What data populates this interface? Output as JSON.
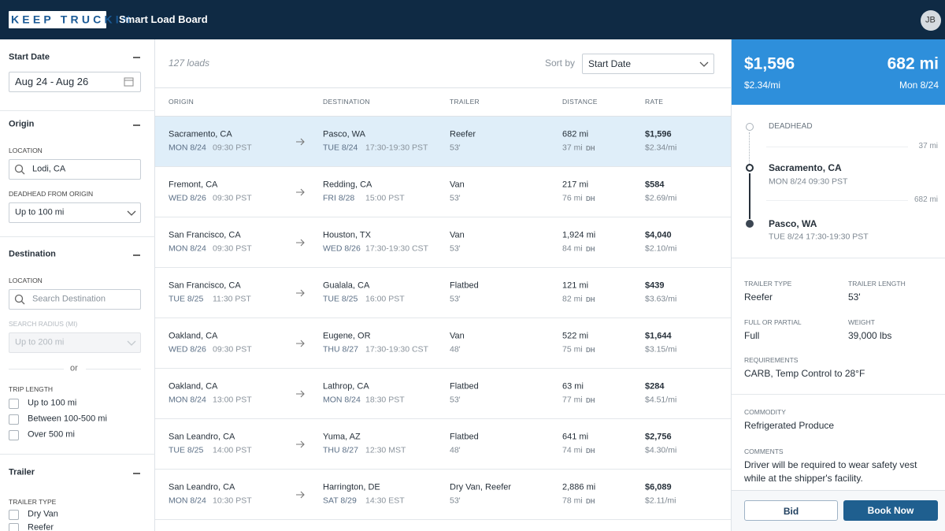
{
  "header": {
    "logo": "KEEP TRUCKIN",
    "title": "Smart Load Board",
    "avatar": "JB"
  },
  "filters": {
    "start_date": {
      "label": "Start Date",
      "value": "Aug 24 - Aug 26"
    },
    "origin": {
      "label": "Origin",
      "location_label": "LOCATION",
      "location": "Lodi, CA",
      "deadhead_label": "DEADHEAD FROM ORIGIN",
      "deadhead": "Up to 100 mi"
    },
    "destination": {
      "label": "Destination",
      "location_label": "LOCATION",
      "placeholder": "Search Destination",
      "radius_label": "SEARCH RADIUS (MI)",
      "radius": "Up to 200 mi",
      "or": "or",
      "trip_length_label": "TRIP LENGTH",
      "trip_options": [
        "Up to 100 mi",
        "Between 100-500 mi",
        "Over 500 mi"
      ]
    },
    "trailer": {
      "label": "Trailer",
      "type_label": "TRAILER TYPE",
      "options": [
        "Dry Van",
        "Reefer"
      ]
    }
  },
  "list": {
    "count": "127 loads",
    "sort_label": "Sort by",
    "sort_value": "Start Date",
    "dh_label": "DH",
    "columns": [
      "ORIGIN",
      "DESTINATION",
      "TRAILER",
      "DISTANCE",
      "RATE"
    ],
    "rows": [
      {
        "origin": "Sacramento, CA",
        "origin_date": "MON 8/24",
        "origin_time": "09:30 PST",
        "dest": "Pasco, WA",
        "dest_date": "TUE 8/24",
        "dest_time": "17:30-19:30 PST",
        "trailer": "Reefer",
        "length": "53'",
        "distance": "682 mi",
        "deadhead": "37 mi",
        "rate": "$1,596",
        "rate_per_mi": "$2.34/mi"
      },
      {
        "origin": "Fremont, CA",
        "origin_date": "WED 8/26",
        "origin_time": "09:30 PST",
        "dest": "Redding, CA",
        "dest_date": "FRI 8/28",
        "dest_time": "15:00 PST",
        "trailer": "Van",
        "length": "53'",
        "distance": "217 mi",
        "deadhead": "76 mi",
        "rate": "$584",
        "rate_per_mi": "$2.69/mi"
      },
      {
        "origin": "San Francisco, CA",
        "origin_date": "MON 8/24",
        "origin_time": "09:30 PST",
        "dest": "Houston, TX",
        "dest_date": "WED 8/26",
        "dest_time": "17:30-19:30 CST",
        "trailer": "Van",
        "length": "53'",
        "distance": "1,924 mi",
        "deadhead": "84 mi",
        "rate": "$4,040",
        "rate_per_mi": "$2.10/mi"
      },
      {
        "origin": "San Francisco, CA",
        "origin_date": "TUE 8/25",
        "origin_time": "11:30 PST",
        "dest": "Gualala, CA",
        "dest_date": "TUE 8/25",
        "dest_time": "16:00 PST",
        "trailer": "Flatbed",
        "length": "53'",
        "distance": "121 mi",
        "deadhead": "82 mi",
        "rate": "$439",
        "rate_per_mi": "$3.63/mi"
      },
      {
        "origin": "Oakland, CA",
        "origin_date": "WED 8/26",
        "origin_time": "09:30 PST",
        "dest": "Eugene, OR",
        "dest_date": "THU 8/27",
        "dest_time": "17:30-19:30 CST",
        "trailer": "Van",
        "length": "48'",
        "distance": "522 mi",
        "deadhead": "75 mi",
        "rate": "$1,644",
        "rate_per_mi": "$3.15/mi"
      },
      {
        "origin": "Oakland, CA",
        "origin_date": "MON 8/24",
        "origin_time": "13:00 PST",
        "dest": "Lathrop, CA",
        "dest_date": "MON 8/24",
        "dest_time": "18:30 PST",
        "trailer": "Flatbed",
        "length": "53'",
        "distance": "63 mi",
        "deadhead": "77 mi",
        "rate": "$284",
        "rate_per_mi": "$4.51/mi"
      },
      {
        "origin": "San Leandro, CA",
        "origin_date": "TUE 8/25",
        "origin_time": "14:00 PST",
        "dest": "Yuma, AZ",
        "dest_date": "THU 8/27",
        "dest_time": "12:30 MST",
        "trailer": "Flatbed",
        "length": "48'",
        "distance": "641 mi",
        "deadhead": "74 mi",
        "rate": "$2,756",
        "rate_per_mi": "$4.30/mi"
      },
      {
        "origin": "San Leandro, CA",
        "origin_date": "MON 8/24",
        "origin_time": "10:30 PST",
        "dest": "Harrington, DE",
        "dest_date": "SAT 8/29",
        "dest_time": "14:30 EST",
        "trailer": "Dry Van, Reefer",
        "length": "53'",
        "distance": "2,886 mi",
        "deadhead": "78 mi",
        "rate": "$6,089",
        "rate_per_mi": "$2.11/mi"
      }
    ]
  },
  "detail": {
    "rate": "$1,596",
    "distance": "682 mi",
    "rate_per_mi": "$2.34/mi",
    "date": "Mon 8/24",
    "deadhead_label": "DEADHEAD",
    "deadhead_distance": "37 mi",
    "leg_distance": "682 mi",
    "stops": [
      {
        "name": "Sacramento, CA",
        "time": "MON 8/24 09:30 PST"
      },
      {
        "name": "Pasco, WA",
        "time": "TUE 8/24 17:30-19:30 PST"
      }
    ],
    "fields": [
      {
        "label": "TRAILER TYPE",
        "value": "Reefer"
      },
      {
        "label": "TRAILER LENGTH",
        "value": "53'"
      },
      {
        "label": "FULL OR PARTIAL",
        "value": "Full"
      },
      {
        "label": "WEIGHT",
        "value": "39,000 lbs"
      },
      {
        "label": "REQUIREMENTS",
        "value": "CARB, Temp Control to 28°F"
      },
      {
        "label": "COMMODITY",
        "value": "Refrigerated Produce"
      },
      {
        "label": "COMMENTS",
        "value": "Driver will be required to wear safety vest while at the shipper's facility."
      }
    ],
    "buttons": [
      "Bid",
      "Book Now"
    ]
  }
}
